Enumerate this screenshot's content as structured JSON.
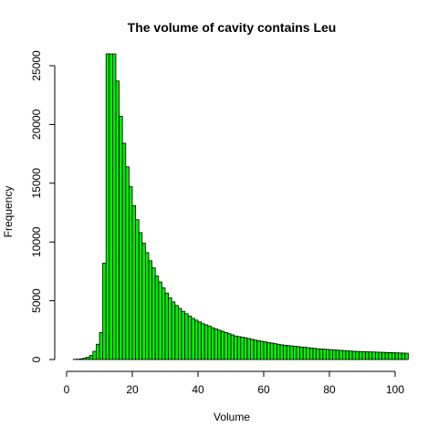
{
  "chart_data": {
    "type": "bar",
    "title": "The volume of cavity contains Leu",
    "xlabel": "Volume",
    "ylabel": "Frequency",
    "xlim": [
      0,
      104
    ],
    "ylim": [
      0,
      25000
    ],
    "x_ticks": [
      0,
      20,
      40,
      60,
      80,
      100
    ],
    "y_ticks": [
      0,
      5000,
      10000,
      15000,
      20000,
      25000
    ],
    "bin_width": 1,
    "bin_start": 0,
    "bar_color": "#00ee00",
    "values": [
      0,
      0,
      20,
      30,
      60,
      120,
      200,
      350,
      700,
      1300,
      2300,
      8200,
      27000,
      27000,
      26000,
      23700,
      20700,
      18400,
      16400,
      14700,
      13100,
      11900,
      10800,
      9900,
      9100,
      8400,
      7800,
      7100,
      6600,
      6100,
      5650,
      5250,
      4900,
      4600,
      4350,
      4100,
      3900,
      3700,
      3500,
      3350,
      3200,
      3050,
      2950,
      2850,
      2700,
      2600,
      2500,
      2400,
      2300,
      2200,
      2100,
      2000,
      1950,
      1900,
      1850,
      1780,
      1720,
      1650,
      1600,
      1550,
      1500,
      1450,
      1400,
      1350,
      1300,
      1250,
      1220,
      1190,
      1160,
      1130,
      1100,
      1070,
      1040,
      1010,
      980,
      950,
      920,
      900,
      880,
      860,
      840,
      820,
      800,
      780,
      760,
      740,
      720,
      700,
      690,
      680,
      670,
      660,
      650,
      640,
      630,
      620,
      610,
      600,
      590,
      580,
      570,
      560,
      550,
      540
    ]
  }
}
